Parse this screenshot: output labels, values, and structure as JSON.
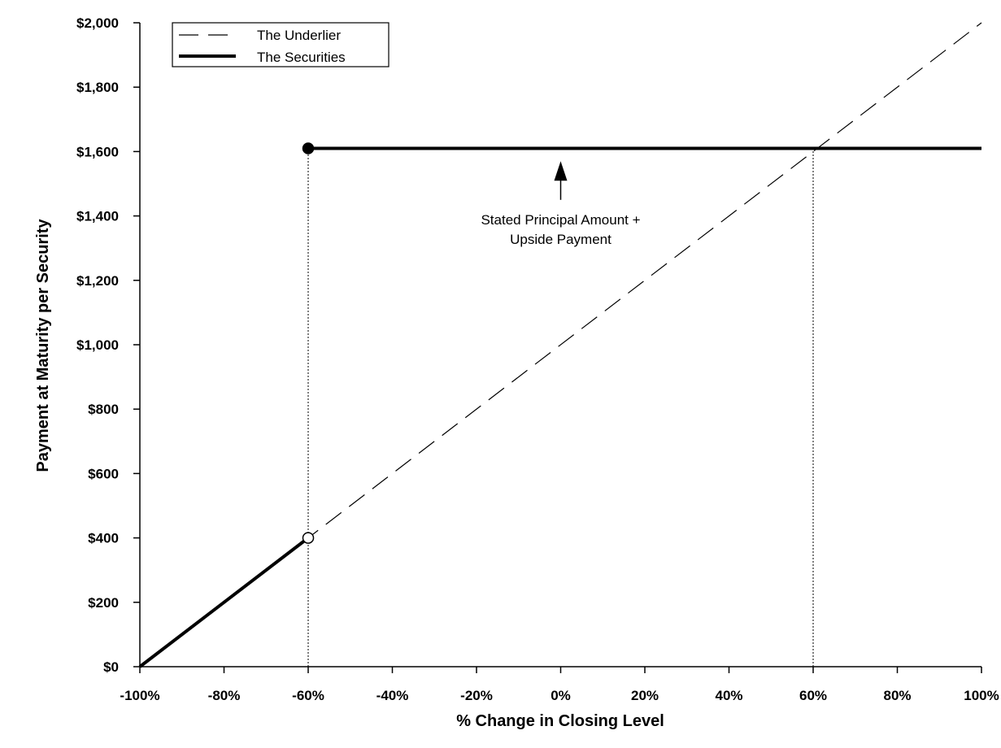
{
  "chart_data": {
    "type": "line",
    "xlabel": "% Change in Closing Level",
    "ylabel": "Payment at Maturity per Security",
    "xlim": [
      -100,
      100
    ],
    "ylim": [
      0,
      2000
    ],
    "x_ticks": [
      -100,
      -80,
      -60,
      -40,
      -20,
      0,
      20,
      40,
      60,
      80,
      100
    ],
    "x_tick_labels": [
      "-100%",
      "-80%",
      "-60%",
      "-40%",
      "-20%",
      "0%",
      "20%",
      "40%",
      "60%",
      "80%",
      "100%"
    ],
    "y_ticks": [
      0,
      200,
      400,
      600,
      800,
      1000,
      1200,
      1400,
      1600,
      1800,
      2000
    ],
    "y_tick_labels": [
      "$0",
      "$200",
      "$400",
      "$600",
      "$800",
      "$1,000",
      "$1,200",
      "$1,400",
      "$1,600",
      "$1,800",
      "$2,000"
    ],
    "grid": false,
    "legend_position": "top-left",
    "series": [
      {
        "name": "The Underlier",
        "style": "dashed",
        "color": "#000000",
        "x": [
          -100,
          100
        ],
        "y": [
          0,
          2000
        ]
      },
      {
        "name": "The Securities",
        "style": "solid-thick",
        "color": "#000000",
        "segments": [
          {
            "x": [
              -100,
              -60
            ],
            "y": [
              0,
              400
            ]
          },
          {
            "x": [
              -60,
              100
            ],
            "y": [
              1610,
              1610
            ]
          }
        ]
      }
    ],
    "markers": [
      {
        "x": -60,
        "y": 1610,
        "fill": "filled"
      },
      {
        "x": -60,
        "y": 400,
        "fill": "open"
      }
    ],
    "reference_lines": [
      {
        "x": -60,
        "y_from": 0,
        "y_to": 1610,
        "style": "dotted"
      },
      {
        "x": 60,
        "y_from": 0,
        "y_to": 1610,
        "style": "dotted"
      }
    ],
    "annotation": {
      "lines": [
        "Stated Principal Amount +",
        "Upside Payment"
      ],
      "arrow_x": 0,
      "arrow_from_y": 1450,
      "arrow_to_y": 1570
    }
  }
}
